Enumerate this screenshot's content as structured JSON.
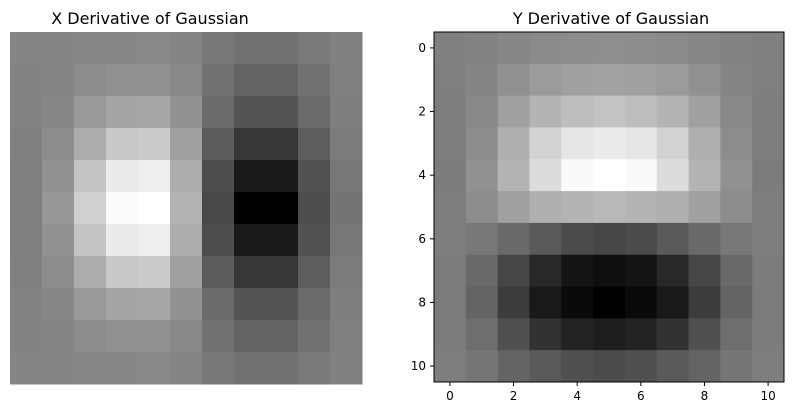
{
  "chart_data": [
    {
      "type": "heatmap",
      "title": "X Derivative of Gaussian",
      "colormap": "gray",
      "axes_visible": false,
      "rows": 11,
      "cols": 11,
      "values": [
        [
          133,
          132,
          134,
          135,
          136,
          133,
          120,
          113,
          113,
          121,
          129
        ],
        [
          131,
          132,
          140,
          145,
          146,
          137,
          114,
          100,
          100,
          114,
          127
        ],
        [
          130,
          135,
          153,
          165,
          166,
          146,
          107,
          84,
          84,
          106,
          126
        ],
        [
          128,
          140,
          172,
          200,
          203,
          160,
          92,
          55,
          55,
          93,
          123
        ],
        [
          127,
          146,
          196,
          235,
          238,
          173,
          77,
          25,
          25,
          82,
          119
        ],
        [
          127,
          152,
          208,
          252,
          255,
          180,
          72,
          0,
          0,
          78,
          116
        ],
        [
          127,
          146,
          196,
          235,
          238,
          173,
          77,
          25,
          25,
          82,
          119
        ],
        [
          128,
          140,
          172,
          200,
          203,
          160,
          92,
          55,
          55,
          93,
          123
        ],
        [
          130,
          135,
          153,
          165,
          166,
          146,
          107,
          84,
          84,
          106,
          126
        ],
        [
          131,
          132,
          140,
          145,
          146,
          137,
          114,
          100,
          100,
          114,
          127
        ],
        [
          133,
          132,
          134,
          135,
          136,
          133,
          120,
          113,
          113,
          121,
          129
        ]
      ]
    },
    {
      "type": "heatmap",
      "title": "Y Derivative of Gaussian",
      "colormap": "gray",
      "axes_visible": true,
      "rows": 11,
      "cols": 11,
      "xlim": [
        -0.5,
        10.5
      ],
      "ylim": [
        10.5,
        -0.5
      ],
      "xticks": [
        0,
        2,
        4,
        6,
        8,
        10
      ],
      "yticks": [
        0,
        2,
        4,
        6,
        8,
        10
      ],
      "values": [
        [
          128,
          130,
          135,
          138,
          140,
          142,
          140,
          138,
          135,
          130,
          128
        ],
        [
          127,
          133,
          145,
          155,
          160,
          163,
          160,
          155,
          145,
          133,
          127
        ],
        [
          126,
          136,
          160,
          180,
          190,
          195,
          190,
          180,
          160,
          136,
          126
        ],
        [
          125,
          140,
          175,
          210,
          230,
          235,
          230,
          210,
          175,
          140,
          125
        ],
        [
          124,
          145,
          180,
          220,
          250,
          255,
          250,
          220,
          180,
          145,
          124
        ],
        [
          125,
          140,
          160,
          175,
          180,
          185,
          180,
          175,
          160,
          140,
          125
        ],
        [
          126,
          120,
          105,
          90,
          75,
          70,
          75,
          90,
          105,
          120,
          126
        ],
        [
          124,
          105,
          70,
          40,
          20,
          15,
          20,
          40,
          70,
          105,
          124
        ],
        [
          123,
          100,
          60,
          25,
          10,
          0,
          10,
          25,
          60,
          100,
          123
        ],
        [
          124,
          110,
          80,
          50,
          35,
          30,
          35,
          50,
          80,
          110,
          124
        ],
        [
          126,
          118,
          100,
          90,
          80,
          75,
          80,
          90,
          100,
          118,
          126
        ]
      ]
    }
  ]
}
